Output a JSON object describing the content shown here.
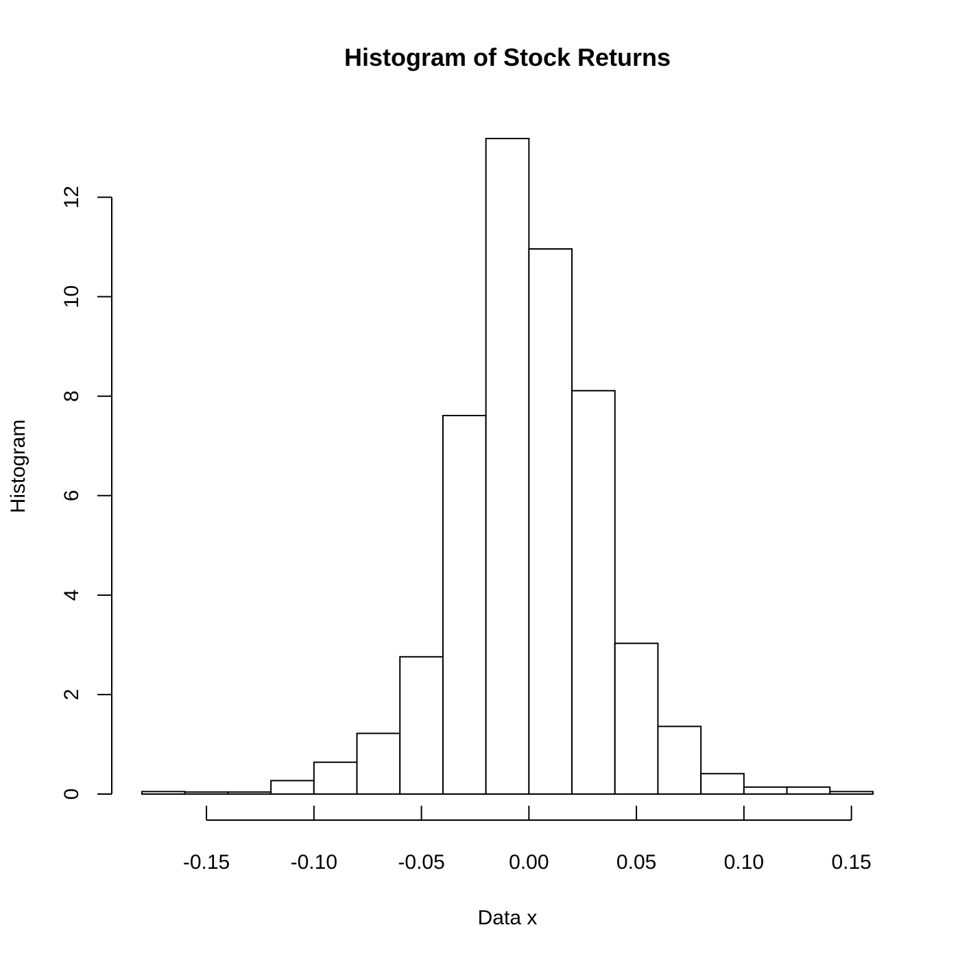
{
  "chart_data": {
    "type": "bar",
    "title": "Histogram of Stock Returns",
    "xlabel": "Data x",
    "ylabel": "Histogram",
    "bin_edges": [
      -0.18,
      -0.16,
      -0.14,
      -0.12,
      -0.1,
      -0.08,
      -0.06,
      -0.04,
      -0.02,
      0.0,
      0.02,
      0.04,
      0.06,
      0.08,
      0.1,
      0.12,
      0.14,
      0.16
    ],
    "values": [
      0.05,
      0.04,
      0.04,
      0.27,
      0.64,
      1.22,
      2.76,
      7.61,
      13.18,
      10.96,
      8.11,
      3.03,
      1.36,
      0.41,
      0.14,
      0.14,
      0.05
    ],
    "xlim": [
      -0.18,
      0.16
    ],
    "ylim": [
      0,
      13.18
    ],
    "x_ticks": [
      -0.15,
      -0.1,
      -0.05,
      0.0,
      0.05,
      0.1,
      0.15
    ],
    "x_tick_labels": [
      "-0.15",
      "-0.10",
      "-0.05",
      "0.00",
      "0.05",
      "0.10",
      "0.15"
    ],
    "y_ticks": [
      0,
      2,
      4,
      6,
      8,
      10,
      12
    ],
    "y_tick_labels": [
      "0",
      "2",
      "4",
      "6",
      "8",
      "10",
      "12"
    ],
    "grid": false,
    "legend": "none",
    "bar_fill": "#ffffff",
    "bar_stroke": "#000000"
  }
}
